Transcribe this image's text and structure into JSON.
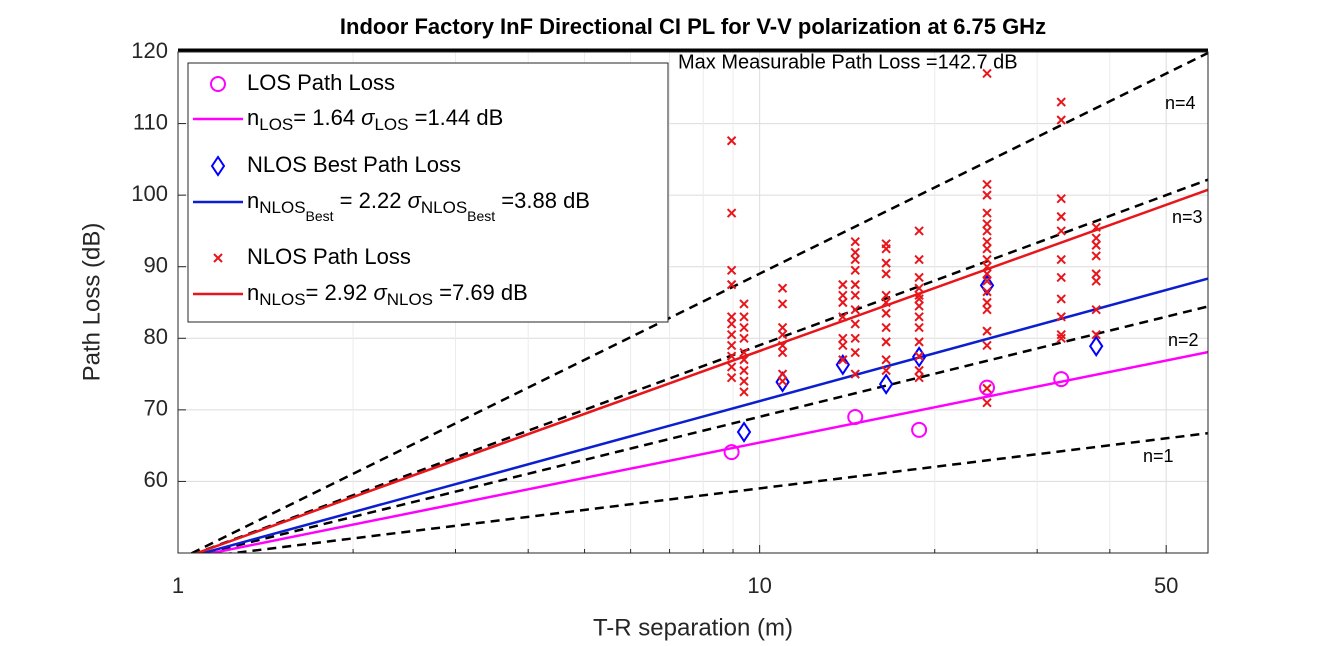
{
  "chart_data": {
    "type": "scatter",
    "title": "Indoor Factory InF Directional CI PL for V-V polarization at 6.75 GHz",
    "xlabel": "T-R separation (m)",
    "ylabel": "Path Loss (dB)",
    "xscale": "log",
    "xlim": [
      1,
      59
    ],
    "ylim": [
      50,
      120
    ],
    "xticks": [
      1,
      10,
      50
    ],
    "xminorticks": [
      2,
      3,
      4,
      5,
      6,
      7,
      8,
      9,
      20,
      30,
      40
    ],
    "yticks": [
      60,
      70,
      80,
      90,
      100,
      110,
      120
    ],
    "grid": true,
    "legend": "upper left",
    "annotations": [
      "Max Measurable Path Loss =142.7 dB"
    ],
    "reference_lines": [
      {
        "label": "n=1",
        "color": "#000000",
        "x": [
          1,
          59
        ],
        "values": [
          49.03,
          66.74
        ]
      },
      {
        "label": "n=2",
        "color": "#000000",
        "x": [
          1,
          59
        ],
        "values": [
          49.03,
          84.45
        ]
      },
      {
        "label": "n=3",
        "color": "#000000",
        "x": [
          1,
          59
        ],
        "values": [
          49.03,
          102.16
        ]
      },
      {
        "label": "n=4",
        "color": "#000000",
        "x": [
          1,
          59
        ],
        "values": [
          49.03,
          119.87
        ]
      }
    ],
    "series": [
      {
        "name": "LOS Path Loss",
        "type": "scatter",
        "marker": "circle",
        "color": "#ff00ff",
        "x": [
          8.95,
          14.6,
          18.8,
          24.6,
          33.0
        ],
        "values": [
          64.1,
          69.0,
          67.2,
          73.1,
          74.3
        ]
      },
      {
        "name": [
          {
            "t": "n"
          },
          {
            "sub": "LOS"
          },
          {
            "t": "= 1.64 "
          },
          {
            "i": "σ"
          },
          {
            "sub": "LOS"
          },
          {
            "t": " =1.44 dB"
          }
        ],
        "type": "line",
        "color": "#ff00ff",
        "x": [
          1,
          59
        ],
        "values": [
          49.03,
          78.07
        ]
      },
      {
        "name": "NLOS Best Path Loss",
        "type": "scatter",
        "marker": "diamond",
        "color": "#0000ff",
        "x": [
          9.4,
          10.95,
          13.9,
          16.5,
          18.8,
          24.6,
          37.9
        ],
        "values": [
          66.9,
          73.9,
          76.3,
          73.6,
          77.4,
          87.4,
          78.9
        ]
      },
      {
        "name": [
          {
            "t": "n"
          },
          {
            "sub": "NLOS"
          },
          {
            "subsub": "Best"
          },
          {
            "t": " = 2.22 "
          },
          {
            "i": "σ"
          },
          {
            "sub": "NLOS"
          },
          {
            "subsub": "Best"
          },
          {
            "t": " =3.88 dB"
          }
        ],
        "type": "line",
        "color": "#0b1fd0",
        "x": [
          1,
          59
        ],
        "values": [
          49.03,
          88.34
        ]
      },
      {
        "name": "NLOS Path Loss",
        "type": "scatter",
        "marker": "cross",
        "color": "#e8151b",
        "x": [
          8.95,
          8.95,
          8.95,
          8.95,
          8.95,
          8.95,
          8.95,
          8.95,
          8.95,
          8.95,
          8.95,
          9.4,
          9.4,
          9.4,
          9.4,
          9.4,
          9.4,
          9.4,
          9.4,
          9.4,
          10.95,
          10.95,
          10.95,
          10.95,
          10.95,
          10.95,
          10.95,
          10.95,
          13.9,
          13.9,
          13.9,
          13.9,
          13.9,
          13.9,
          13.9,
          14.6,
          14.6,
          14.6,
          14.6,
          14.6,
          14.6,
          14.6,
          14.6,
          14.6,
          14.6,
          14.6,
          16.5,
          16.5,
          16.5,
          16.5,
          16.5,
          16.5,
          16.5,
          16.5,
          16.5,
          16.5,
          16.5,
          18.8,
          18.8,
          18.8,
          18.8,
          18.8,
          18.8,
          18.8,
          18.8,
          18.8,
          18.8,
          18.8,
          18.8,
          18.8,
          24.6,
          24.6,
          24.6,
          24.6,
          24.6,
          24.6,
          24.6,
          24.6,
          24.6,
          24.6,
          24.6,
          24.6,
          24.6,
          24.6,
          24.6,
          24.6,
          24.6,
          24.6,
          24.6,
          33.0,
          33.0,
          33.0,
          33.0,
          33.0,
          33.0,
          33.0,
          33.0,
          33.0,
          33.0,
          33.0,
          37.9,
          37.9,
          37.9,
          37.9,
          37.9,
          37.9,
          37.9,
          37.9
        ],
        "values": [
          107.6,
          97.5,
          89.5,
          87.5,
          83,
          82,
          80.5,
          79,
          77.5,
          76,
          74.5,
          84.8,
          83,
          81.5,
          80,
          78,
          77,
          75.5,
          74,
          72.5,
          87,
          84.8,
          81.5,
          80.5,
          79,
          78,
          75,
          74,
          87.5,
          86,
          85,
          83,
          80,
          79,
          77,
          93.5,
          92,
          91,
          89.5,
          87.5,
          86,
          84,
          82,
          80,
          78,
          75,
          93.2,
          92.5,
          90.5,
          89,
          86,
          85,
          83.5,
          81.5,
          79.5,
          77,
          75.5,
          95,
          91,
          88.5,
          87,
          86,
          85.5,
          84.5,
          83,
          81.5,
          79.5,
          77.5,
          75.5,
          74.5,
          117,
          101.5,
          100,
          97.5,
          96,
          95,
          93.5,
          92.5,
          91,
          90,
          89,
          88,
          86.5,
          85,
          84,
          81,
          79,
          73,
          71,
          113,
          110.5,
          99.5,
          97,
          95,
          91,
          88.5,
          85.5,
          83,
          80.5,
          80,
          95.5,
          94,
          93,
          91.5,
          89,
          88,
          84,
          80.5
        ]
      },
      {
        "name": [
          {
            "t": "n"
          },
          {
            "sub": "NLOS"
          },
          {
            "t": "= 2.92 "
          },
          {
            "i": "σ"
          },
          {
            "sub": "NLOS"
          },
          {
            "t": " =7.69 dB"
          }
        ],
        "type": "line",
        "color": "#e8151b",
        "x": [
          1,
          59
        ],
        "values": [
          49.03,
          100.74
        ]
      }
    ]
  }
}
